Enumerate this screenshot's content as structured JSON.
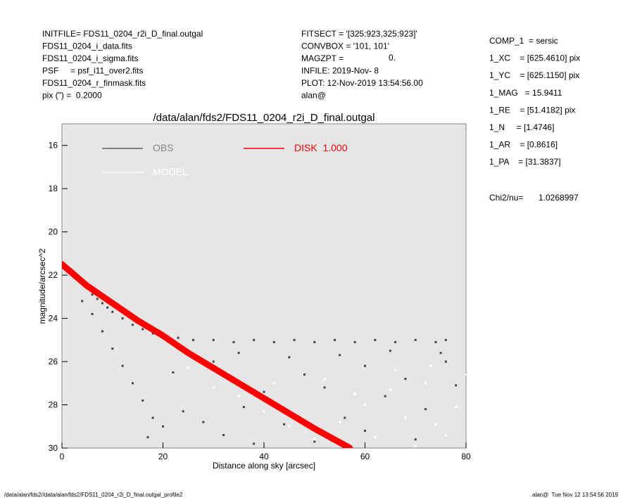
{
  "chart_data": {
    "type": "scatter",
    "title": "/data/alan/fds2/FDS11_0204_r2i_D_final.outgal",
    "x_label": "Distance along sky [arcsec]",
    "y_label": "magnitude/arcsec^2",
    "header_left": [
      "INITFILE= FDS11_0204_r2i_D_final.outgal",
      "FDS11_0204_i_data.fits",
      "FDS11_0204_i_sigma.fits",
      "PSF     = psf_i11_over2.fits",
      "FDS11_0204_r_finmask.fits",
      "pix (\") =  0.2000"
    ],
    "header_mid": [
      "FITSECT = '[325:923,325:923]'",
      "CONVBOX = '101, 101'",
      "MAGZPT =",
      "INFILE: 2019-Nov- 8",
      "PLOT: 12-Nov-2019 13:54:56.00",
      "alan@"
    ],
    "magzpt_value": "0.",
    "params": [
      "COMP_1  = sersic",
      "1_XC    = [625.4610] pix",
      "1_YC    = [625.1150] pix",
      "1_MAG   = 15.9411",
      "1_RE    = [51.4182] pix",
      "1_N     = [1.4746]",
      "1_AR    = [0.8616]",
      "1_PA    = [31.3837]"
    ],
    "chi2_label": "Chi2/nu=",
    "chi2_value": "1.0268997",
    "footer_left": "/data/alan/fds2//data/alan/fds2/FDS11_0204_r2i_D_final.outgal_profile2",
    "footer_right": "alan@  Tue Nov 12 13:54:56 2019",
    "xlim": [
      0,
      80
    ],
    "xticks": [
      0,
      20,
      40,
      60,
      80
    ],
    "ylim": [
      15,
      30
    ],
    "yticks": [
      16,
      18,
      20,
      22,
      24,
      26,
      28,
      30
    ],
    "invert_y": true,
    "series": [
      {
        "name": "OBS",
        "color": "#444444",
        "style": "points",
        "x": [
          0.5,
          1,
          2,
          3,
          4,
          5,
          6,
          7,
          8,
          9,
          10,
          12,
          14,
          16,
          18,
          20,
          23,
          26,
          30,
          34,
          38,
          42,
          46,
          50,
          54,
          58,
          62,
          66,
          70,
          74,
          76,
          4,
          6,
          8,
          10,
          12,
          14,
          16,
          18,
          17,
          20,
          24,
          28,
          32,
          36,
          40,
          44,
          48,
          52,
          56,
          60,
          64,
          68,
          72,
          76,
          78,
          22,
          30,
          35,
          45,
          55,
          65,
          75,
          38,
          50,
          60,
          70
        ],
        "y": [
          21.5,
          21.7,
          21.9,
          22.2,
          22.4,
          22.6,
          22.9,
          23.1,
          23.3,
          23.5,
          23.7,
          24.0,
          24.3,
          24.5,
          24.7,
          24.8,
          24.9,
          25.0,
          25.0,
          25.1,
          25.0,
          25.1,
          25.0,
          25.1,
          25.0,
          25.1,
          25.0,
          25.1,
          25.0,
          25.1,
          25.0,
          23.2,
          23.8,
          24.6,
          25.4,
          26.2,
          27.0,
          27.8,
          28.6,
          29.5,
          29.0,
          28.3,
          28.8,
          29.4,
          28.1,
          27.4,
          28.9,
          26.6,
          27.2,
          28.6,
          26.2,
          27.6,
          26.8,
          28.2,
          26.0,
          27.1,
          26.5,
          26.0,
          25.6,
          25.8,
          25.7,
          25.5,
          25.6,
          29.8,
          29.7,
          29.2,
          29.6
        ]
      },
      {
        "name": "MODEL",
        "color": "#ffffff",
        "style": "points",
        "x": [
          25,
          30,
          35,
          40,
          45,
          50,
          55,
          60,
          62,
          65,
          68,
          70,
          72,
          74,
          76,
          78,
          80,
          28,
          33,
          42,
          52,
          58,
          66,
          73
        ],
        "y": [
          26.3,
          27.2,
          27.6,
          28.3,
          29.0,
          29.6,
          28.8,
          28.0,
          29.5,
          27.3,
          28.6,
          29.9,
          27.0,
          28.9,
          29.4,
          28.1,
          26.6,
          26.0,
          26.5,
          27.0,
          26.8,
          27.5,
          26.4,
          26.2
        ]
      },
      {
        "name": "DISK  1.000",
        "color": "#ff0000",
        "style": "band",
        "x": [
          0,
          5,
          10,
          15,
          20,
          25,
          30,
          35,
          40,
          45,
          50,
          57
        ],
        "y": [
          21.5,
          22.5,
          23.3,
          24.1,
          24.8,
          25.6,
          26.3,
          27.0,
          27.7,
          28.4,
          29.1,
          30.0
        ]
      }
    ]
  }
}
